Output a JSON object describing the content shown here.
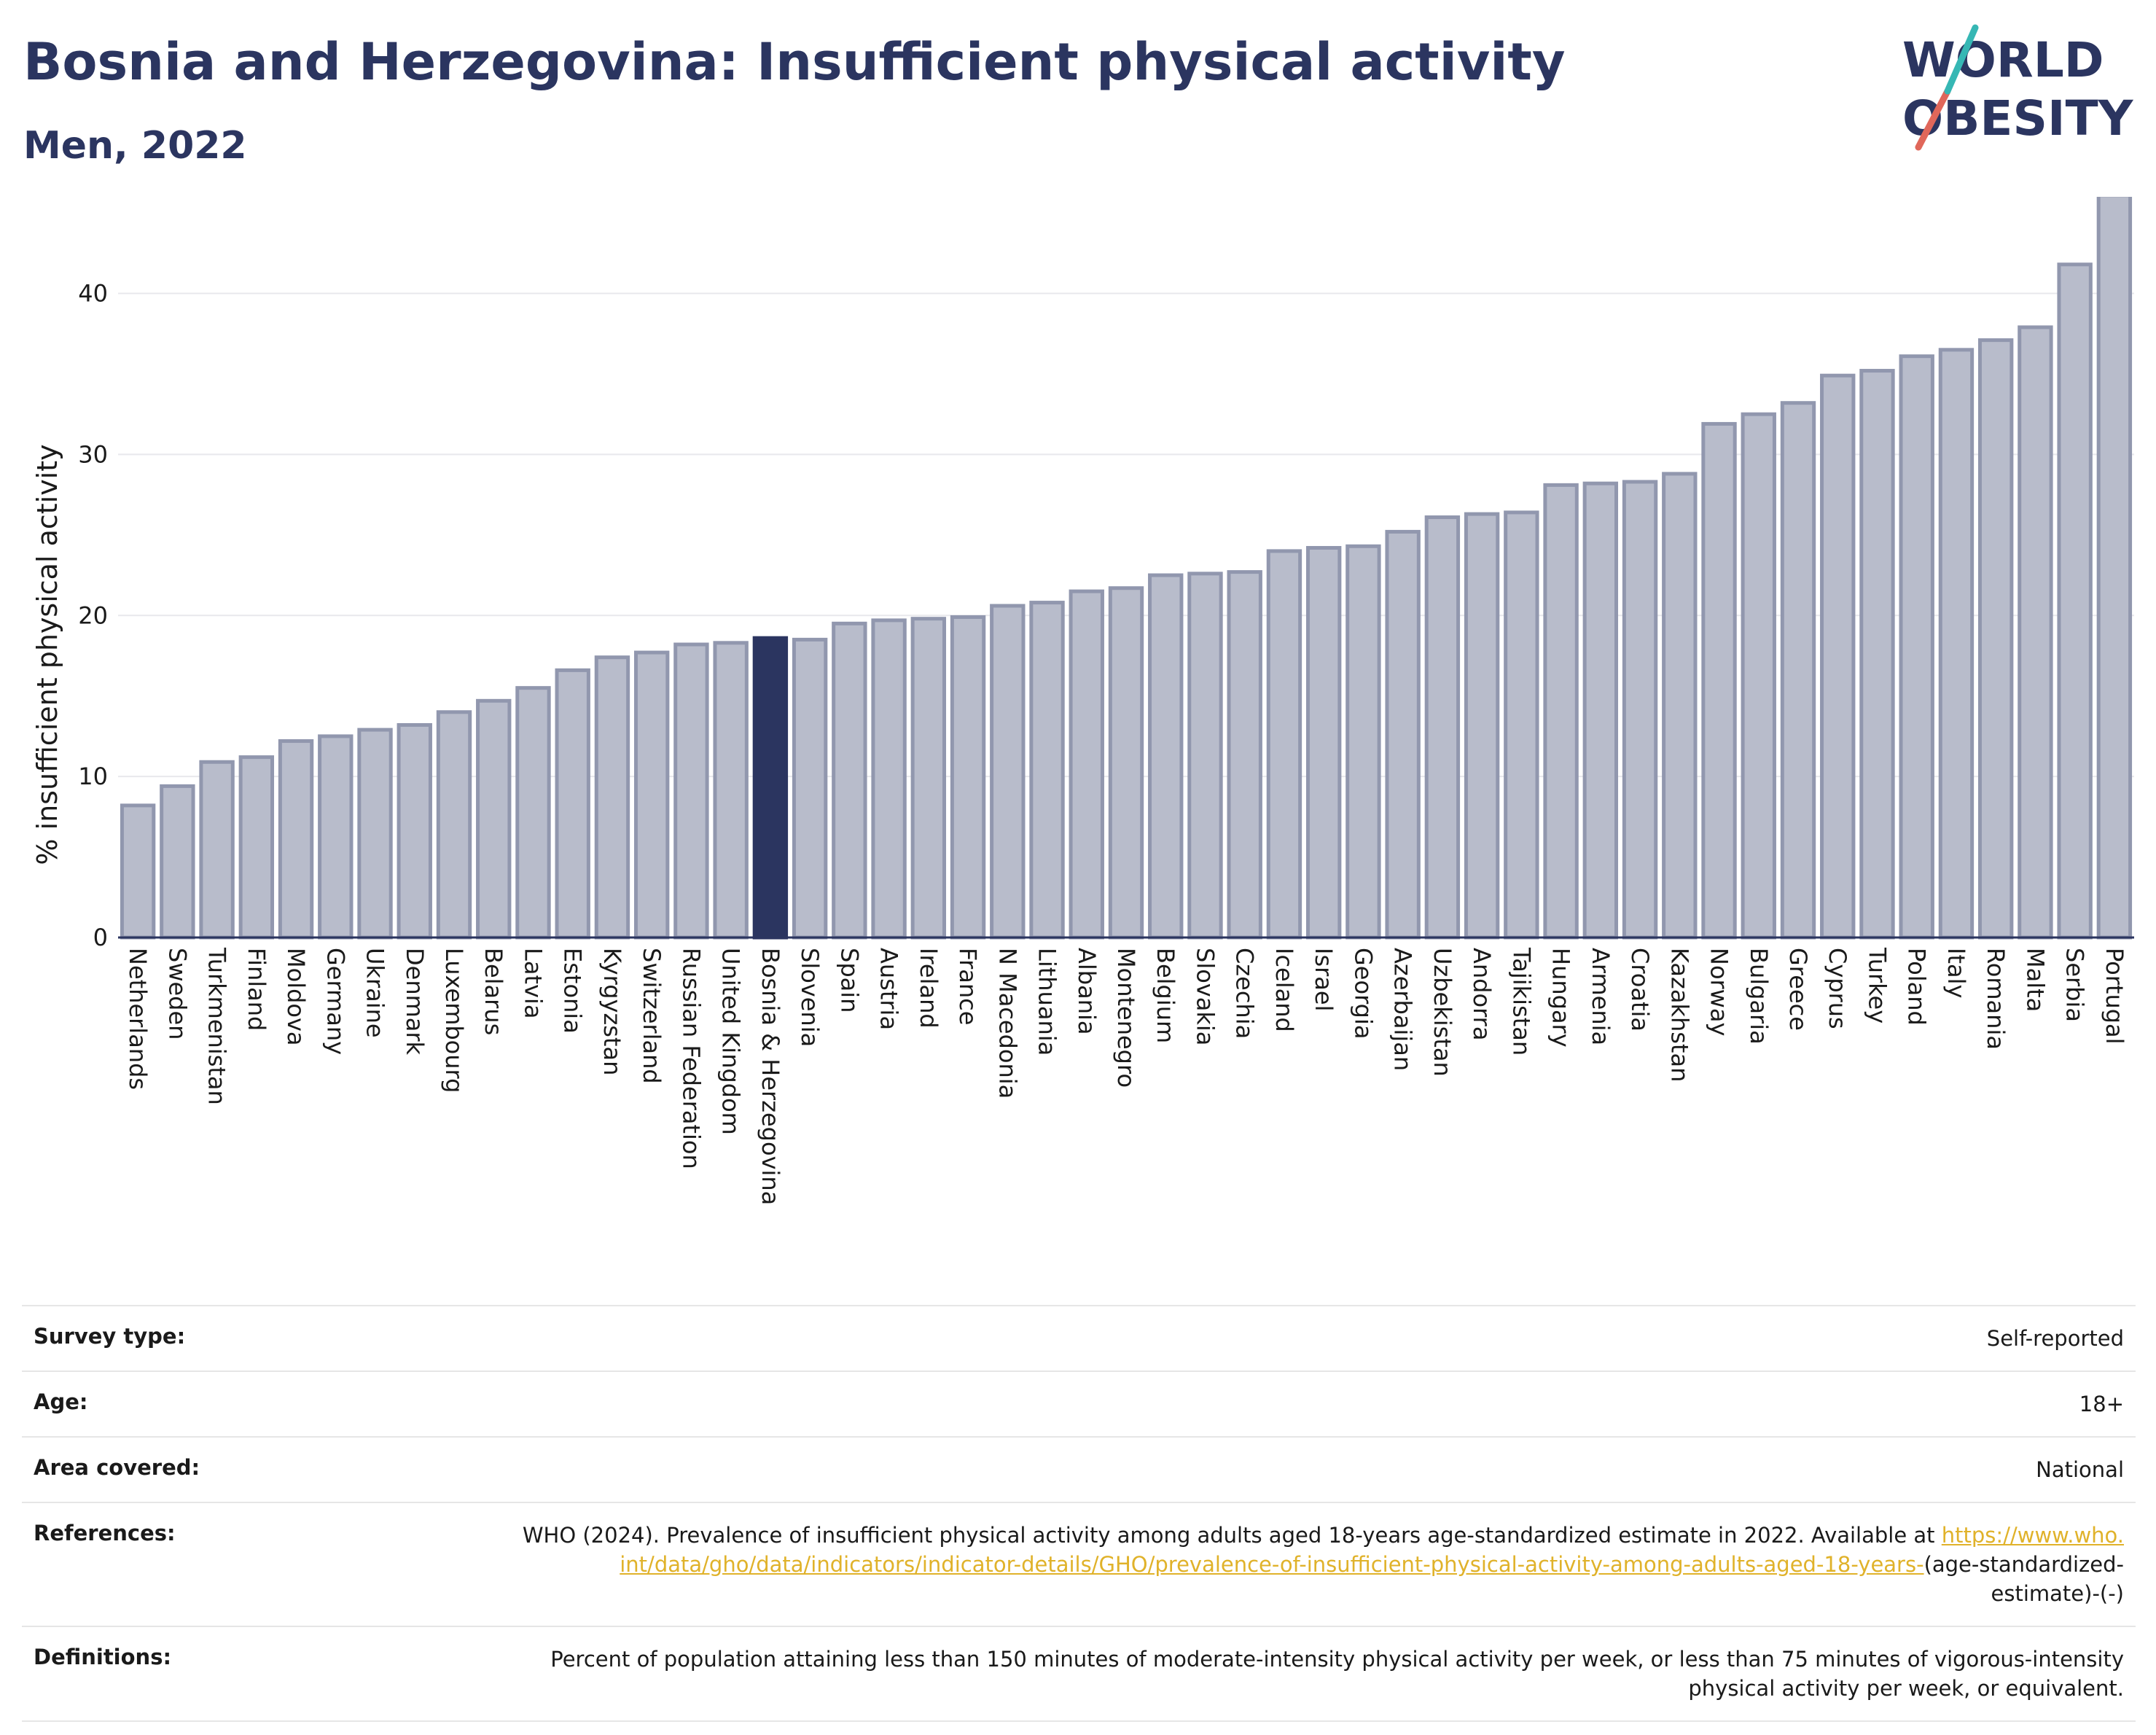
{
  "header": {
    "title": "Bosnia and Herzegovina: Insufficient physical activity",
    "subtitle": "Men, 2022"
  },
  "logo": {
    "line1": "WORLD",
    "line2": "OBESITY",
    "colors": {
      "text": "#2b3560",
      "slash_red": "#e0675a",
      "slash_teal": "#36b7b4"
    }
  },
  "chart_data": {
    "type": "bar",
    "ylabel": "% insufficient physical activity",
    "ylim": [
      0,
      46
    ],
    "yticks": [
      0,
      10,
      20,
      30,
      40
    ],
    "grid": true,
    "highlight": "Bosnia & Herzegovina",
    "colors": {
      "bar": "#b8bccb",
      "bar_edge": "#9197ae",
      "highlight": "#2b3560",
      "grid": "#e8e8ec"
    },
    "categories": [
      "Netherlands",
      "Sweden",
      "Turkmenistan",
      "Finland",
      "Moldova",
      "Germany",
      "Ukraine",
      "Denmark",
      "Luxembourg",
      "Belarus",
      "Latvia",
      "Estonia",
      "Kyrgyzstan",
      "Switzerland",
      "Russian Federation",
      "United Kingdom",
      "Bosnia & Herzegovina",
      "Slovenia",
      "Spain",
      "Austria",
      "Ireland",
      "France",
      "N Macedonia",
      "Lithuania",
      "Albania",
      "Montenegro",
      "Belgium",
      "Slovakia",
      "Czechia",
      "Iceland",
      "Israel",
      "Georgia",
      "Azerbaijan",
      "Uzbekistan",
      "Andorra",
      "Tajikistan",
      "Hungary",
      "Armenia",
      "Croatia",
      "Kazakhstan",
      "Norway",
      "Bulgaria",
      "Greece",
      "Cyprus",
      "Turkey",
      "Poland",
      "Italy",
      "Romania",
      "Malta",
      "Serbia",
      "Portugal"
    ],
    "values": [
      8.2,
      9.4,
      10.9,
      11.2,
      12.2,
      12.5,
      12.9,
      13.2,
      14.0,
      14.7,
      15.5,
      16.6,
      17.4,
      17.7,
      18.2,
      18.3,
      18.6,
      18.5,
      19.5,
      19.7,
      19.8,
      19.9,
      20.6,
      20.8,
      21.5,
      21.7,
      22.5,
      22.6,
      22.7,
      24.0,
      24.2,
      24.3,
      25.2,
      26.1,
      26.3,
      26.4,
      28.1,
      28.2,
      28.3,
      28.8,
      31.9,
      32.5,
      33.2,
      34.9,
      35.2,
      36.1,
      36.5,
      37.1,
      37.9,
      41.8,
      46.1
    ]
  },
  "meta": {
    "rows": [
      {
        "label": "Survey type:",
        "value": "Self-reported"
      },
      {
        "label": "Age:",
        "value": "18+"
      },
      {
        "label": "Area covered:",
        "value": "National"
      }
    ],
    "references": {
      "label": "References:",
      "text": "WHO (2024). Prevalence of insufficient physical activity among adults aged 18-years age-standardized estimate in 2022. Available at",
      "link": "https://www.who.int/data/gho/data/indicators/indicator-details/GHO/prevalence-of-insufficient-physical-activity-among-adults-aged-18-years-",
      "suffix": "(age-standardized-estimate)-(-)"
    },
    "definitions": {
      "label": "Definitions:",
      "text": "Percent of population attaining less than 150 minutes of moderate-intensity physical activity per week, or less than 75 minutes of vigorous-intensity physical activity per week, or equivalent."
    }
  }
}
